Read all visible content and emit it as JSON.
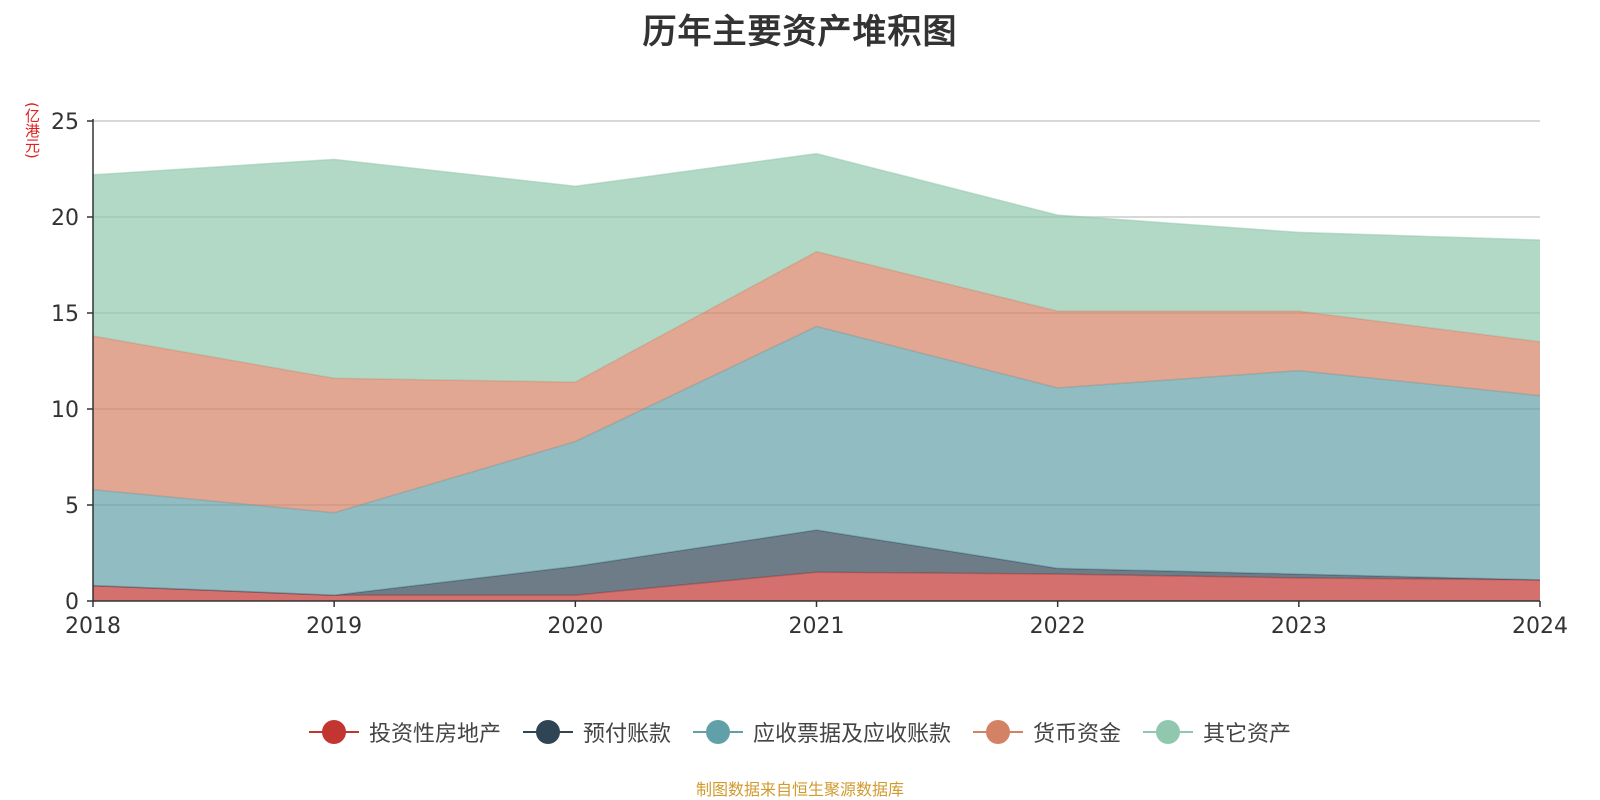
{
  "chart_data": {
    "type": "area",
    "stacked": true,
    "title": "历年主要资产堆积图",
    "unit_label": "(亿港元)",
    "x": [
      "2018",
      "2019",
      "2020",
      "2021",
      "2022",
      "2023",
      "2024"
    ],
    "ylim": [
      0,
      25
    ],
    "yticks": [
      "0",
      "5",
      "10",
      "15",
      "20",
      "25"
    ],
    "grid": true,
    "legend_position": "bottom",
    "series": [
      {
        "name": "投资性房地产",
        "color": "#c23531",
        "values": [
          0.8,
          0.3,
          0.3,
          1.5,
          1.4,
          1.2,
          1.1
        ]
      },
      {
        "name": "预付账款",
        "color": "#2f4554",
        "values": [
          0.0,
          0.0,
          1.5,
          2.2,
          0.3,
          0.2,
          0.0
        ]
      },
      {
        "name": "应收票据及应收账款",
        "color": "#61a0a8",
        "values": [
          5.0,
          4.3,
          6.5,
          10.6,
          9.4,
          10.6,
          9.6
        ]
      },
      {
        "name": "货币资金",
        "color": "#d48265",
        "values": [
          8.0,
          7.0,
          3.1,
          3.9,
          4.0,
          3.1,
          2.8
        ]
      },
      {
        "name": "其它资产",
        "color": "#91c7ae",
        "values": [
          8.4,
          11.4,
          10.2,
          5.1,
          5.0,
          4.1,
          5.3
        ]
      }
    ]
  },
  "footer": {
    "source": "制图数据来自恒生聚源数据库"
  }
}
